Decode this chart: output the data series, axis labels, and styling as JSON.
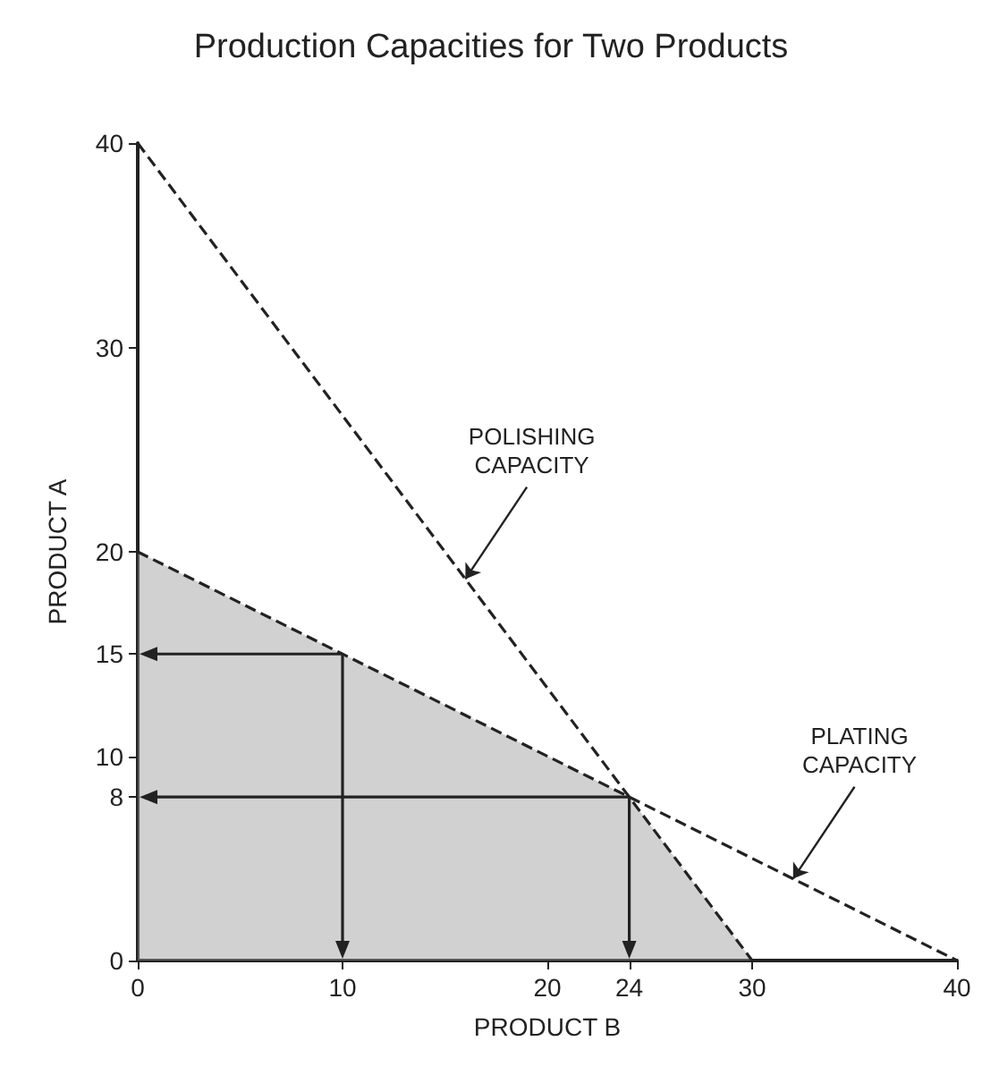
{
  "chart_data": {
    "type": "line",
    "title": "Production Capacities for Two Products",
    "xlabel": "PRODUCT B",
    "ylabel": "PRODUCT A",
    "series": [
      {
        "type": "area",
        "color": "#999999",
        "x": [
          0,
          10,
          24,
          30
        ],
        "values": [
          20,
          15,
          8,
          0
        ]
      },
      {
        "color": "#222222",
        "x": [
          0,
          30
        ],
        "values": [
          40,
          0
        ],
        "line_style": "dashed"
      },
      {
        "color": "#222222",
        "x": [
          0,
          40
        ],
        "values": [
          20,
          0
        ],
        "line_style": "dashed"
      }
    ],
    "annotations": [
      {
        "text": "POLISHING\nCAPACITY",
        "x": 16,
        "y": 18.67
      },
      {
        "text": "PLATING\nCAPACITY",
        "x": 32,
        "y": 4
      }
    ],
    "xlim": [
      0,
      40
    ],
    "xticks": [
      0,
      10,
      20,
      24,
      30,
      40
    ],
    "ylim": [
      0,
      40
    ],
    "yticks": [
      0,
      8,
      10,
      15,
      20,
      30,
      40
    ],
    "grid": false
  }
}
